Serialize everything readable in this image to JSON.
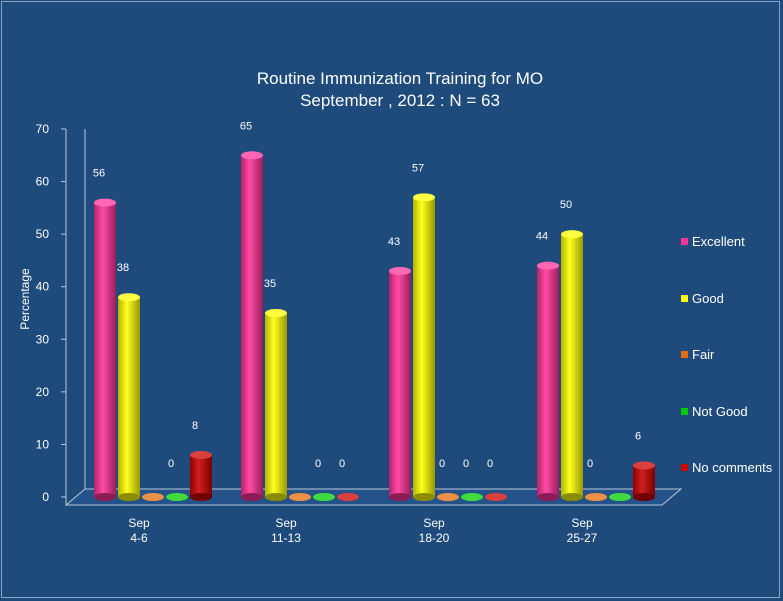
{
  "chart_data": {
    "type": "bar",
    "title": "Routine Immunization Training for MO",
    "subtitle": "September , 2012 : N = 63",
    "xlabel": "",
    "ylabel": "Percentage",
    "ylim": [
      0,
      70
    ],
    "yticks": [
      0,
      10,
      20,
      30,
      40,
      50,
      60,
      70
    ],
    "grid": false,
    "legend_position": "right",
    "categories": [
      {
        "line1": "Sep",
        "line2": "4-6"
      },
      {
        "line1": "Sep",
        "line2": "11-13"
      },
      {
        "line1": "Sep",
        "line2": "18-20"
      },
      {
        "line1": "Sep",
        "line2": "25-27"
      }
    ],
    "series": [
      {
        "name": "Excellent",
        "color": "#ff3399",
        "values": [
          56,
          65,
          43,
          44
        ]
      },
      {
        "name": "Good",
        "color": "#ffff00",
        "values": [
          38,
          35,
          57,
          50
        ]
      },
      {
        "name": "Fair",
        "color": "#e46c0a",
        "values": [
          0,
          0,
          0,
          0
        ]
      },
      {
        "name": "Not Good",
        "color": "#00cc00",
        "values": [
          0,
          0,
          0,
          0
        ]
      },
      {
        "name": "No comments",
        "color": "#cc0000",
        "values": [
          8,
          0,
          0,
          6
        ]
      }
    ],
    "data_labels": [
      [
        "56",
        "38",
        "",
        "0",
        "8"
      ],
      [
        "65",
        "35",
        "",
        "0",
        "0"
      ],
      [
        "43",
        "57",
        "0",
        "0",
        "0"
      ],
      [
        "44",
        "50",
        "0",
        "",
        "6"
      ]
    ]
  }
}
